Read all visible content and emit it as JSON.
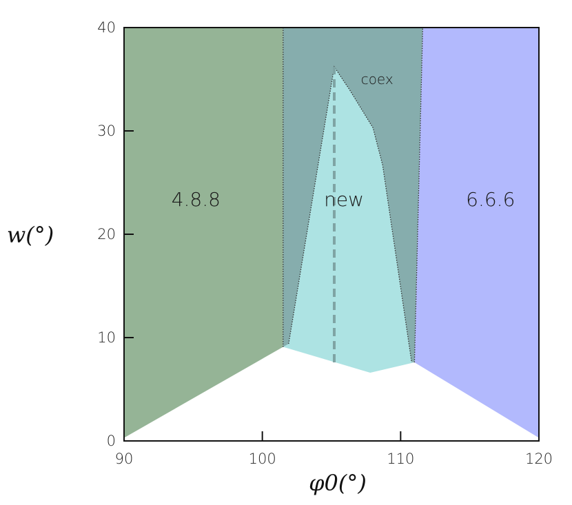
{
  "chart_data": {
    "type": "area",
    "title": "",
    "xlabel": "φ0(°)",
    "ylabel": "w(°)",
    "xlim": [
      90,
      120
    ],
    "ylim": [
      0,
      40
    ],
    "x_ticks": [
      "90",
      "100",
      "110",
      "120"
    ],
    "y_ticks": [
      "0",
      "10",
      "20",
      "30",
      "40"
    ],
    "colors": {
      "phase_488": "#95b496",
      "phase_coex": "#86adad",
      "phase_new": "#ade3e3",
      "phase_666": "#b2b9fd",
      "boundary": "#333333",
      "dashed_line": "#7fa4a4"
    },
    "regions": [
      {
        "name": "4.8.8",
        "label": "4.8.8",
        "label_at": [
          95.2,
          23.4
        ],
        "polygon": [
          [
            90,
            0.3
          ],
          [
            101.5,
            9.1
          ],
          [
            101.5,
            40
          ],
          [
            90,
            40
          ]
        ]
      },
      {
        "name": "coex",
        "label": "coex",
        "label_at": [
          108.3,
          35.2
        ],
        "polygon": [
          [
            101.5,
            9.1
          ],
          [
            101.5,
            40
          ],
          [
            111.6,
            40
          ],
          [
            111.0,
            7.6
          ]
        ]
      },
      {
        "name": "6.6.6",
        "label": "6.6.6",
        "label_at": [
          116.5,
          23.4
        ],
        "polygon": [
          [
            111.6,
            40
          ],
          [
            111.0,
            7.6
          ],
          [
            120,
            0.3
          ],
          [
            120,
            40
          ]
        ]
      },
      {
        "name": "new",
        "label": "new",
        "label_at": [
          105.9,
          23.4
        ],
        "polygon": [
          [
            101.5,
            9.1
          ],
          [
            101.9,
            9.4
          ],
          [
            105.2,
            36.2
          ],
          [
            106.3,
            34.0
          ],
          [
            108.0,
            30.3
          ],
          [
            108.7,
            26.7
          ],
          [
            110.8,
            7.6
          ],
          [
            111.0,
            7.6
          ],
          [
            107.8,
            6.6
          ],
          [
            101.5,
            9.1
          ]
        ]
      }
    ],
    "boundaries": [
      {
        "name": "left-boundary",
        "points": [
          [
            101.5,
            9.1
          ],
          [
            101.5,
            40
          ]
        ]
      },
      {
        "name": "right-boundary",
        "points": [
          [
            111.0,
            7.6
          ],
          [
            111.6,
            40
          ]
        ]
      },
      {
        "name": "new-phase-boundary",
        "points": [
          [
            101.9,
            9.4
          ],
          [
            105.2,
            36.2
          ],
          [
            106.3,
            34.0
          ],
          [
            108.0,
            30.3
          ],
          [
            108.7,
            26.7
          ],
          [
            110.8,
            7.6
          ]
        ]
      }
    ],
    "dashed_line": {
      "points": [
        [
          105.2,
          7.6
        ],
        [
          105.2,
          36.2
        ]
      ]
    }
  }
}
